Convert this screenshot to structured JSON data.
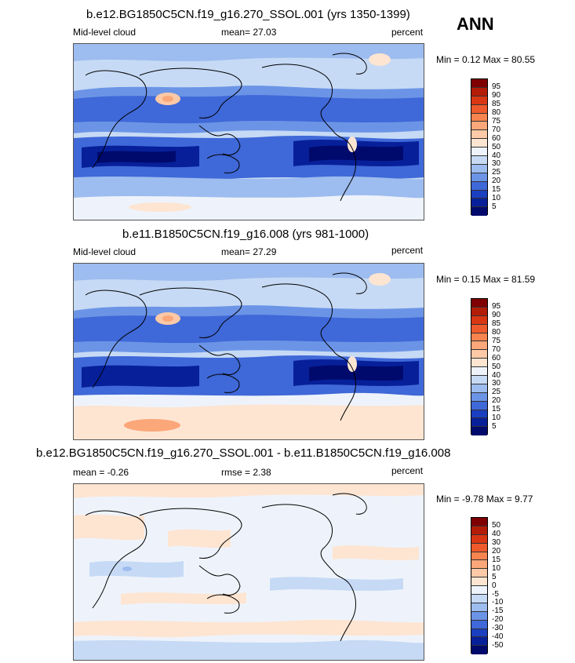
{
  "season": "ANN",
  "panels": [
    {
      "title": "b.e12.BG1850C5CN.f19_g16.270_SSOL.001 (yrs 1350-1399)",
      "left_label": "Mid-level cloud",
      "center_label": "mean=  27.03",
      "units": "percent",
      "minmax": "Min =   0.12 Max =  80.55",
      "colorbar_ticks": [
        "95",
        "90",
        "85",
        "80",
        "75",
        "70",
        "60",
        "50",
        "40",
        "30",
        "25",
        "20",
        "15",
        "10",
        "5"
      ],
      "colors": [
        "#7f0000",
        "#b31c06",
        "#d93614",
        "#ee5a2c",
        "#f7834f",
        "#fba779",
        "#fdc9a6",
        "#fde5d2",
        "#eef3fb",
        "#c6daf5",
        "#9dbcef",
        "#6c94e6",
        "#3f68d8",
        "#1a3fc0",
        "#07209a",
        "#000a6d"
      ]
    },
    {
      "title": "b.e11.B1850C5CN.f19_g16.008 (yrs 981-1000)",
      "left_label": "Mid-level cloud",
      "center_label": "mean=  27.29",
      "units": "percent",
      "minmax": "Min =   0.15 Max =  81.59",
      "colorbar_ticks": [
        "95",
        "90",
        "85",
        "80",
        "75",
        "70",
        "60",
        "50",
        "40",
        "30",
        "25",
        "20",
        "15",
        "10",
        "5"
      ],
      "colors": [
        "#7f0000",
        "#b31c06",
        "#d93614",
        "#ee5a2c",
        "#f7834f",
        "#fba779",
        "#fdc9a6",
        "#fde5d2",
        "#eef3fb",
        "#c6daf5",
        "#9dbcef",
        "#6c94e6",
        "#3f68d8",
        "#1a3fc0",
        "#07209a",
        "#000a6d"
      ]
    },
    {
      "title": "b.e12.BG1850C5CN.f19_g16.270_SSOL.001 - b.e11.B1850C5CN.f19_g16.008",
      "left_label": "mean =  -0.26",
      "center_label": "rmse =   2.38",
      "units": "percent",
      "minmax": "Min =  -9.78 Max =   9.77",
      "colorbar_ticks": [
        "50",
        "40",
        "30",
        "20",
        "15",
        "10",
        "5",
        "0",
        "-5",
        "-10",
        "-15",
        "-20",
        "-30",
        "-40",
        "-50"
      ],
      "colors": [
        "#7f0000",
        "#b31c06",
        "#d93614",
        "#ee5a2c",
        "#f7834f",
        "#fba779",
        "#fdc9a6",
        "#fde5d2",
        "#eef3fb",
        "#c6daf5",
        "#9dbcef",
        "#6c94e6",
        "#3f68d8",
        "#1a3fc0",
        "#07209a",
        "#000a6d"
      ]
    }
  ]
}
